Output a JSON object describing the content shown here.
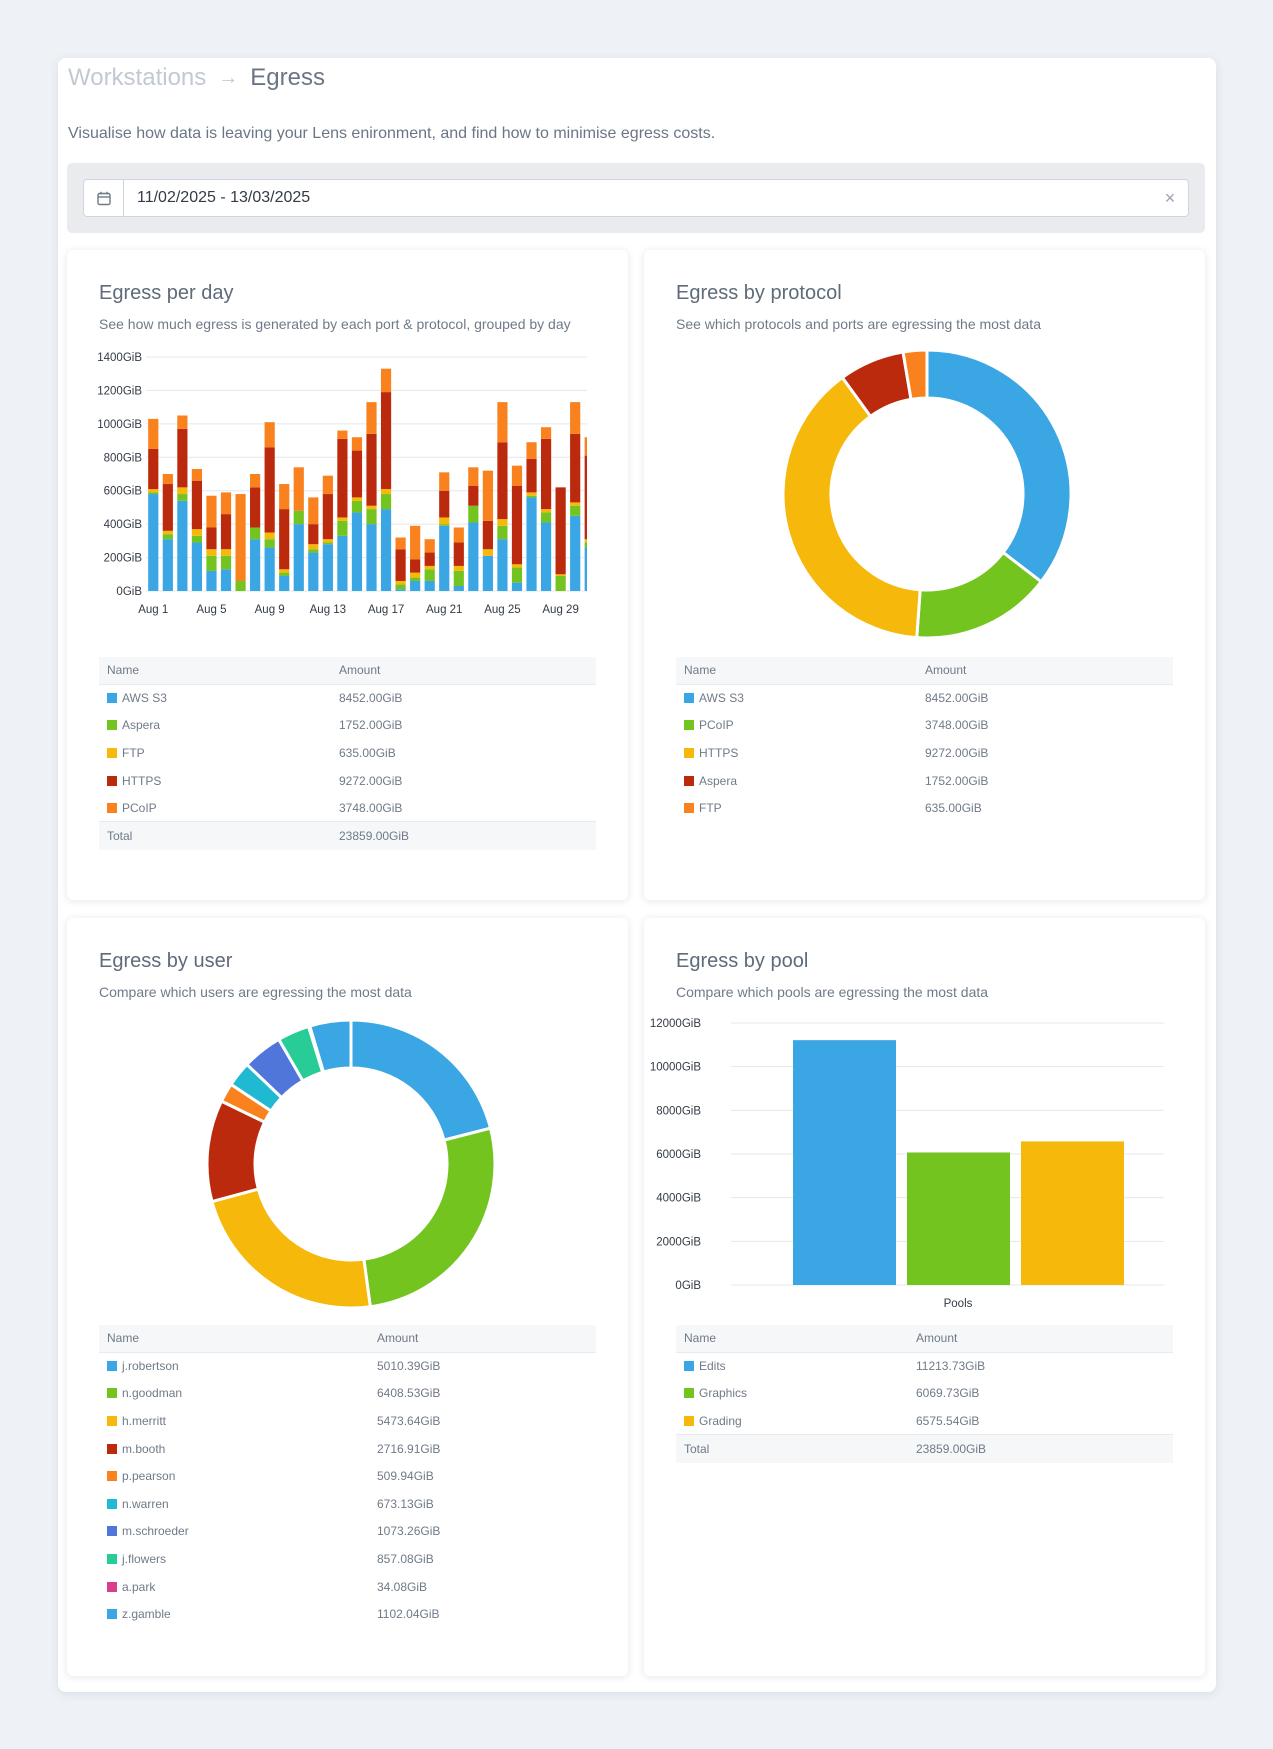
{
  "breadcrumb": {
    "parent": "Workstations",
    "separator": "→",
    "current": "Egress"
  },
  "subtitle": "Visualise how data is leaving your Lens enironment, and find how to minimise egress costs.",
  "date_range": {
    "value": "11/02/2025 - 13/03/2025",
    "clear_label": "×",
    "icon": "calendar-icon"
  },
  "colors": {
    "aws_s3": "#3aa6e3",
    "aspera": "#74c420",
    "ftp": "#f6b80a",
    "https": "#bc2a0d",
    "pcoip": "#f9821e",
    "teal": "#1fbad2",
    "indigo": "#5076dc",
    "mint": "#27cc97",
    "magenta": "#da3d8b"
  },
  "cards": {
    "per_day": {
      "title": "Egress per day",
      "description": "See how much egress is generated by each port & protocol, grouped by day",
      "table": {
        "headers": [
          "Name",
          "Amount"
        ],
        "rows": [
          {
            "name": "AWS S3",
            "amount": "8452.00GiB",
            "color": "#3aa6e3"
          },
          {
            "name": "Aspera",
            "amount": "1752.00GiB",
            "color": "#74c420"
          },
          {
            "name": "FTP",
            "amount": "635.00GiB",
            "color": "#f6b80a"
          },
          {
            "name": "HTTPS",
            "amount": "9272.00GiB",
            "color": "#bc2a0d"
          },
          {
            "name": "PCoIP",
            "amount": "3748.00GiB",
            "color": "#f9821e"
          }
        ],
        "total_label": "Total",
        "total_amount": "23859.00GiB"
      }
    },
    "by_protocol": {
      "title": "Egress by protocol",
      "description": "See which protocols and ports are egressing the most data",
      "table": {
        "headers": [
          "Name",
          "Amount"
        ],
        "rows": [
          {
            "name": "AWS S3",
            "amount": "8452.00GiB",
            "color": "#3aa6e3"
          },
          {
            "name": "PCoIP",
            "amount": "3748.00GiB",
            "color": "#74c420"
          },
          {
            "name": "HTTPS",
            "amount": "9272.00GiB",
            "color": "#f6b80a"
          },
          {
            "name": "Aspera",
            "amount": "1752.00GiB",
            "color": "#bc2a0d"
          },
          {
            "name": "FTP",
            "amount": "635.00GiB",
            "color": "#f9821e"
          }
        ]
      }
    },
    "by_user": {
      "title": "Egress by user",
      "description": "Compare which users are egressing the most data",
      "table": {
        "headers": [
          "Name",
          "Amount"
        ],
        "rows": [
          {
            "name": "j.robertson",
            "amount": "5010.39GiB",
            "color": "#3aa6e3"
          },
          {
            "name": "n.goodman",
            "amount": "6408.53GiB",
            "color": "#74c420"
          },
          {
            "name": "h.merritt",
            "amount": "5473.64GiB",
            "color": "#f6b80a"
          },
          {
            "name": "m.booth",
            "amount": "2716.91GiB",
            "color": "#bc2a0d"
          },
          {
            "name": "p.pearson",
            "amount": "509.94GiB",
            "color": "#f9821e"
          },
          {
            "name": "n.warren",
            "amount": "673.13GiB",
            "color": "#1fbad2"
          },
          {
            "name": "m.schroeder",
            "amount": "1073.26GiB",
            "color": "#5076dc"
          },
          {
            "name": "j.flowers",
            "amount": "857.08GiB",
            "color": "#27cc97"
          },
          {
            "name": "a.park",
            "amount": "34.08GiB",
            "color": "#da3d8b"
          },
          {
            "name": "z.gamble",
            "amount": "1102.04GiB",
            "color": "#3aa6e3"
          }
        ]
      }
    },
    "by_pool": {
      "title": "Egress by pool",
      "description": "Compare which pools are egressing the most data",
      "table": {
        "headers": [
          "Name",
          "Amount"
        ],
        "rows": [
          {
            "name": "Edits",
            "amount": "11213.73GiB",
            "color": "#3aa6e3"
          },
          {
            "name": "Graphics",
            "amount": "6069.73GiB",
            "color": "#74c420"
          },
          {
            "name": "Grading",
            "amount": "6575.54GiB",
            "color": "#f6b80a"
          }
        ],
        "total_label": "Total",
        "total_amount": "23859.00GiB"
      }
    }
  },
  "chart_data": [
    {
      "id": "egress-per-day",
      "type": "bar",
      "stacked": true,
      "y_unit": "GiB",
      "ylim": [
        0,
        1400
      ],
      "y_ticks": [
        "0GiB",
        "200GiB",
        "400GiB",
        "600GiB",
        "800GiB",
        "1000GiB",
        "1200GiB",
        "1400GiB"
      ],
      "x_tick_labels": [
        "Aug 1",
        "Aug 5",
        "Aug 9",
        "Aug 13",
        "Aug 17",
        "Aug 21",
        "Aug 25",
        "Aug 29"
      ],
      "series": [
        {
          "name": "AWS S3",
          "color": "#3aa6e3",
          "values": [
            580,
            310,
            540,
            290,
            120,
            130,
            0,
            310,
            260,
            90,
            400,
            230,
            280,
            330,
            470,
            400,
            490,
            10,
            60,
            60,
            390,
            30,
            410,
            210,
            310,
            50,
            560,
            410,
            0,
            450,
            260
          ]
        },
        {
          "name": "Aspera",
          "color": "#74c420",
          "values": [
            10,
            30,
            40,
            40,
            90,
            80,
            60,
            70,
            50,
            20,
            80,
            20,
            10,
            90,
            70,
            90,
            90,
            30,
            20,
            70,
            10,
            90,
            100,
            0,
            80,
            90,
            10,
            60,
            90,
            60,
            30
          ]
        },
        {
          "name": "FTP",
          "color": "#f6b80a",
          "values": [
            20,
            20,
            40,
            40,
            40,
            40,
            0,
            0,
            40,
            20,
            0,
            30,
            20,
            20,
            20,
            20,
            30,
            20,
            30,
            20,
            40,
            30,
            0,
            40,
            40,
            20,
            20,
            20,
            10,
            20,
            20
          ]
        },
        {
          "name": "HTTPS",
          "color": "#bc2a0d",
          "values": [
            240,
            280,
            350,
            290,
            130,
            210,
            0,
            240,
            510,
            360,
            0,
            120,
            270,
            470,
            280,
            430,
            580,
            190,
            80,
            80,
            160,
            140,
            120,
            170,
            460,
            470,
            200,
            420,
            520,
            410,
            500
          ]
        },
        {
          "name": "PCoIP",
          "color": "#f9821e",
          "values": [
            180,
            60,
            80,
            70,
            190,
            130,
            520,
            80,
            150,
            150,
            260,
            160,
            110,
            50,
            80,
            190,
            140,
            70,
            200,
            80,
            110,
            90,
            110,
            300,
            240,
            120,
            100,
            70,
            0,
            190,
            110
          ]
        }
      ]
    },
    {
      "id": "egress-by-protocol",
      "type": "pie",
      "donut": true,
      "slices": [
        {
          "name": "AWS S3",
          "value": 8452.0,
          "color": "#3aa6e3"
        },
        {
          "name": "PCoIP",
          "value": 3748.0,
          "color": "#74c420"
        },
        {
          "name": "HTTPS",
          "value": 9272.0,
          "color": "#f6b80a"
        },
        {
          "name": "Aspera",
          "value": 1752.0,
          "color": "#bc2a0d"
        },
        {
          "name": "FTP",
          "value": 635.0,
          "color": "#f9821e"
        }
      ]
    },
    {
      "id": "egress-by-user",
      "type": "pie",
      "donut": true,
      "slices": [
        {
          "name": "j.robertson",
          "value": 5010.39,
          "color": "#3aa6e3"
        },
        {
          "name": "n.goodman",
          "value": 6408.53,
          "color": "#74c420"
        },
        {
          "name": "h.merritt",
          "value": 5473.64,
          "color": "#f6b80a"
        },
        {
          "name": "m.booth",
          "value": 2716.91,
          "color": "#bc2a0d"
        },
        {
          "name": "p.pearson",
          "value": 509.94,
          "color": "#f9821e"
        },
        {
          "name": "n.warren",
          "value": 673.13,
          "color": "#1fbad2"
        },
        {
          "name": "m.schroeder",
          "value": 1073.26,
          "color": "#5076dc"
        },
        {
          "name": "j.flowers",
          "value": 857.08,
          "color": "#27cc97"
        },
        {
          "name": "a.park",
          "value": 34.08,
          "color": "#da3d8b"
        },
        {
          "name": "z.gamble",
          "value": 1102.04,
          "color": "#3aa6e3"
        }
      ]
    },
    {
      "id": "egress-by-pool",
      "type": "bar",
      "xlabel": "Pools",
      "ylim": [
        0,
        12000
      ],
      "y_ticks": [
        "0GiB",
        "2000GiB",
        "4000GiB",
        "6000GiB",
        "8000GiB",
        "10000GiB",
        "12000GiB"
      ],
      "series": [
        {
          "name": "Edits",
          "value": 11213.73,
          "color": "#3aa6e3"
        },
        {
          "name": "Graphics",
          "value": 6069.73,
          "color": "#74c420"
        },
        {
          "name": "Grading",
          "value": 6575.54,
          "color": "#f6b80a"
        }
      ]
    }
  ]
}
